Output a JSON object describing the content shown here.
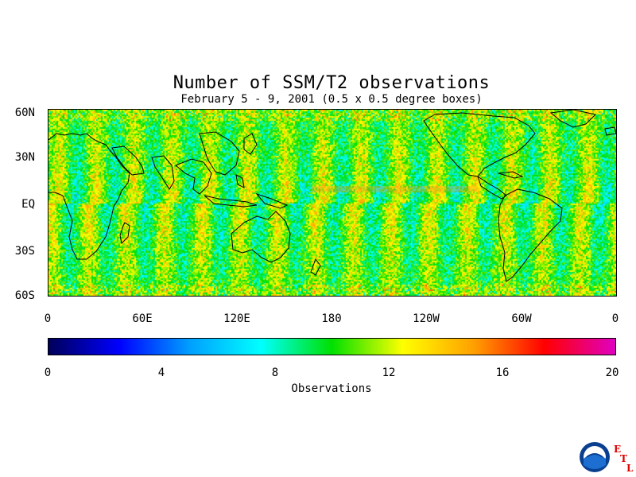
{
  "title": "Number of SSM/T2 observations",
  "subtitle": "February 5 - 9, 2001 (0.5 x 0.5 degree boxes)",
  "map": {
    "y_labels": [
      "60N",
      "30N",
      "EQ",
      "30S",
      "60S"
    ],
    "x_labels": [
      "0",
      "60E",
      "120E",
      "180",
      "120W",
      "60W",
      "0"
    ]
  },
  "colorbar": {
    "ticks": [
      "0",
      "4",
      "8",
      "12",
      "16",
      "20"
    ],
    "label": "Observations",
    "range": [
      0,
      20
    ],
    "colors": [
      "#00005a",
      "#0000ff",
      "#00a0ff",
      "#00ffff",
      "#00e000",
      "#ffff00",
      "#ffa000",
      "#ff0000",
      "#e000c0"
    ]
  },
  "logo": {
    "icon": "noaa-logo-icon",
    "etl_letters": [
      "E",
      "T",
      "L"
    ]
  }
}
